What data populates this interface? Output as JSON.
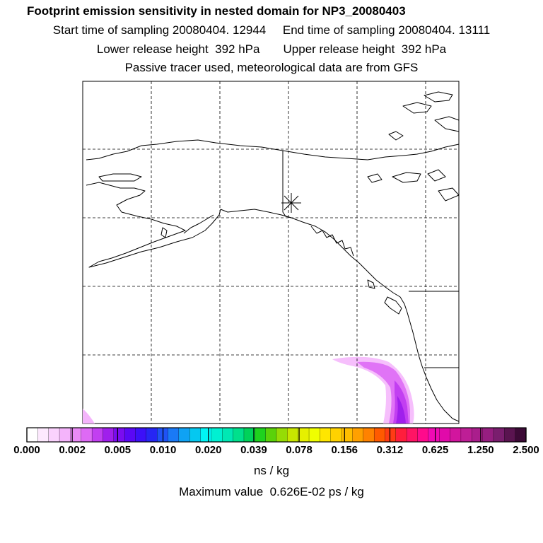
{
  "header": {
    "title": "Footprint emission sensitivity in nested domain for NP3_20080403",
    "start_label": "Start time of sampling 20080404. 12944",
    "end_label": "End time of sampling 20080404. 13111",
    "lower_label": "Lower release height  392 hPa",
    "upper_label": "Upper release height  392 hPa",
    "tracer_note": "Passive tracer used, meteorological data are from GFS"
  },
  "colorbar": {
    "tick_labels": [
      "0.000",
      "0.002",
      "0.005",
      "0.010",
      "0.020",
      "0.039",
      "0.078",
      "0.156",
      "0.312",
      "0.625",
      "1.250",
      "2.500"
    ],
    "colors": [
      "#ffffff",
      "#fde9fe",
      "#fad2fd",
      "#f4b4fb",
      "#e98af6",
      "#de6af5",
      "#c23ff1",
      "#a01fec",
      "#7a0cf0",
      "#5a08f5",
      "#3c10f8",
      "#2626f4",
      "#1f52f6",
      "#1a7af6",
      "#0fa2f4",
      "#05c8f0",
      "#00f5f5",
      "#00f0d2",
      "#00e8b4",
      "#00e08c",
      "#00d25a",
      "#1ed21e",
      "#5ad20a",
      "#96dc05",
      "#c8e600",
      "#e6f000",
      "#f0ff00",
      "#ffe600",
      "#ffd200",
      "#ffbe00",
      "#ffa000",
      "#ff8200",
      "#ff5a00",
      "#ff3c14",
      "#ff1e3c",
      "#ff1464",
      "#ff0a8c",
      "#f00ab4",
      "#e10aaa",
      "#d2159e",
      "#be1e96",
      "#aa1e8c",
      "#961e80",
      "#7a1e6e",
      "#5a1450",
      "#3c0a36"
    ],
    "unit": "ns / kg",
    "max_value_text": "Maximum value  0.626E-02 ps / kg"
  },
  "map": {
    "release_marker": "asterisk-marker",
    "plume_colors": [
      "#f4b4fb",
      "#de6af5",
      "#c23ff1",
      "#a01fec"
    ]
  }
}
